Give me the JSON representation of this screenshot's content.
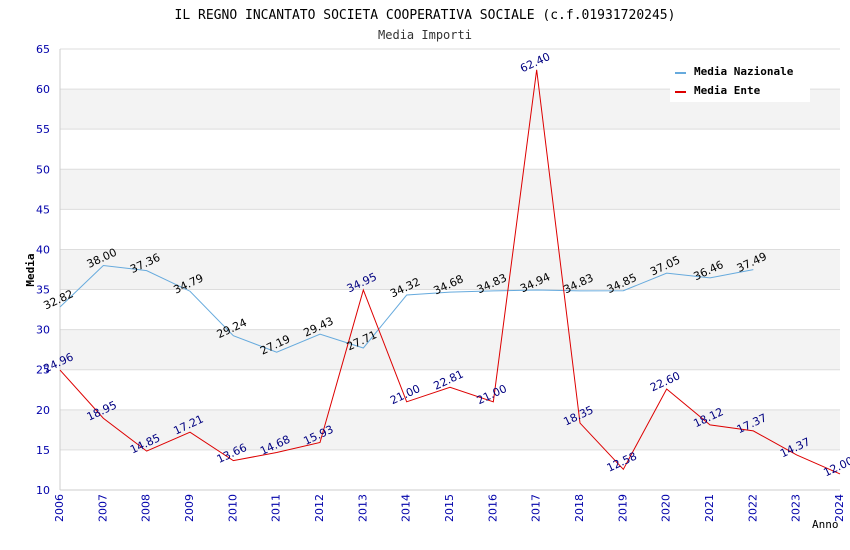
{
  "chart_data": {
    "type": "line",
    "title": "IL REGNO INCANTATO SOCIETA COOPERATIVA SOCIALE (c.f.01931720245)",
    "subtitle": "Media Importi",
    "xlabel": "Anno",
    "ylabel": "Media",
    "ylim": [
      10,
      65
    ],
    "yticks": [
      10,
      15,
      20,
      25,
      30,
      35,
      40,
      45,
      50,
      55,
      60,
      65
    ],
    "x": [
      2006,
      2007,
      2008,
      2009,
      2010,
      2011,
      2012,
      2013,
      2014,
      2015,
      2016,
      2017,
      2018,
      2019,
      2020,
      2021,
      2022,
      2023,
      2024
    ],
    "legend_position": "top-right",
    "grid": "horizontal bands",
    "series": [
      {
        "name": "Media Nazionale",
        "color": "#66aadd",
        "label_color": "#000000",
        "values": [
          32.82,
          38.0,
          37.36,
          34.79,
          29.24,
          27.19,
          29.43,
          27.71,
          34.32,
          34.68,
          34.83,
          34.94,
          34.83,
          34.85,
          37.05,
          36.46,
          37.49,
          null,
          null
        ],
        "labels": [
          "32.82",
          "38.00",
          "37.36",
          "34.79",
          "29.24",
          "27.19",
          "29.43",
          "27.71",
          "34.32",
          "34.68",
          "34.83",
          "34.94",
          "34.83",
          "34.85",
          "37.05",
          "36.46",
          "37.49",
          null,
          null
        ]
      },
      {
        "name": "Media Ente",
        "color": "#dd0000",
        "label_color": "#000080",
        "values": [
          24.96,
          18.95,
          14.85,
          17.21,
          13.66,
          14.68,
          15.93,
          34.95,
          21.0,
          22.81,
          21.0,
          62.4,
          18.35,
          12.58,
          22.6,
          18.12,
          17.37,
          14.37,
          12.0
        ],
        "labels": [
          "24.96",
          "18.95",
          "14.85",
          "17.21",
          "13.66",
          "14.68",
          "15.93",
          "34.95",
          "21.00",
          "22.81",
          "21.00",
          "62.40",
          "18.35",
          "12.58",
          "22.60",
          "18.12",
          "17.37",
          "14.37",
          "12.00"
        ]
      }
    ]
  }
}
